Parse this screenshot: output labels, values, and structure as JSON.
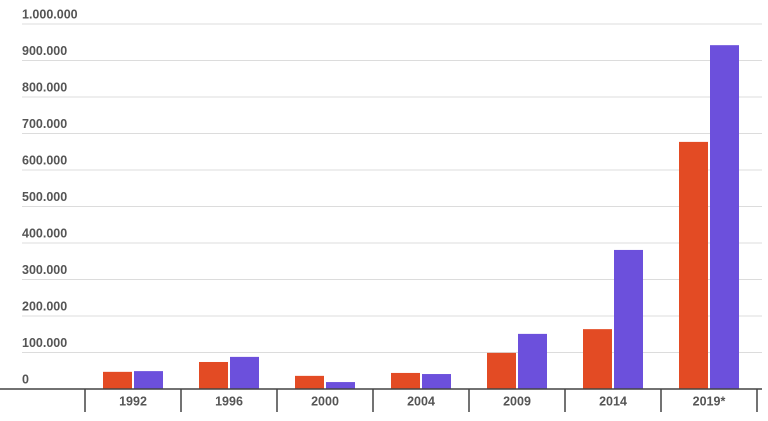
{
  "chart_data": {
    "type": "bar",
    "categories": [
      "1992",
      "1996",
      "2000",
      "2004",
      "2009",
      "2014",
      "2019*"
    ],
    "series": [
      {
        "color": "#e34b24",
        "values": [
          47000,
          74000,
          36000,
          44000,
          99000,
          164000,
          677000
        ]
      },
      {
        "color": "#6c50dc",
        "values": [
          49000,
          88000,
          19000,
          41000,
          151000,
          381000,
          942000
        ]
      }
    ],
    "ylim": [
      0,
      1000000
    ],
    "yticks": [
      0,
      {
        "value": 100000,
        "label": "100.000"
      },
      {
        "value": 200000,
        "label": "200.000"
      },
      {
        "value": 300000,
        "label": "300.000"
      },
      {
        "value": 400000,
        "label": "400.000"
      },
      {
        "value": 500000,
        "label": "500.000"
      },
      {
        "value": 600000,
        "label": "600.000"
      },
      {
        "value": 700000,
        "label": "700.000"
      },
      {
        "value": 800000,
        "label": "800.000"
      },
      {
        "value": 900000,
        "label": "900.000"
      },
      {
        "value": 1000000,
        "label": "1.000.000"
      }
    ],
    "grid": true
  }
}
